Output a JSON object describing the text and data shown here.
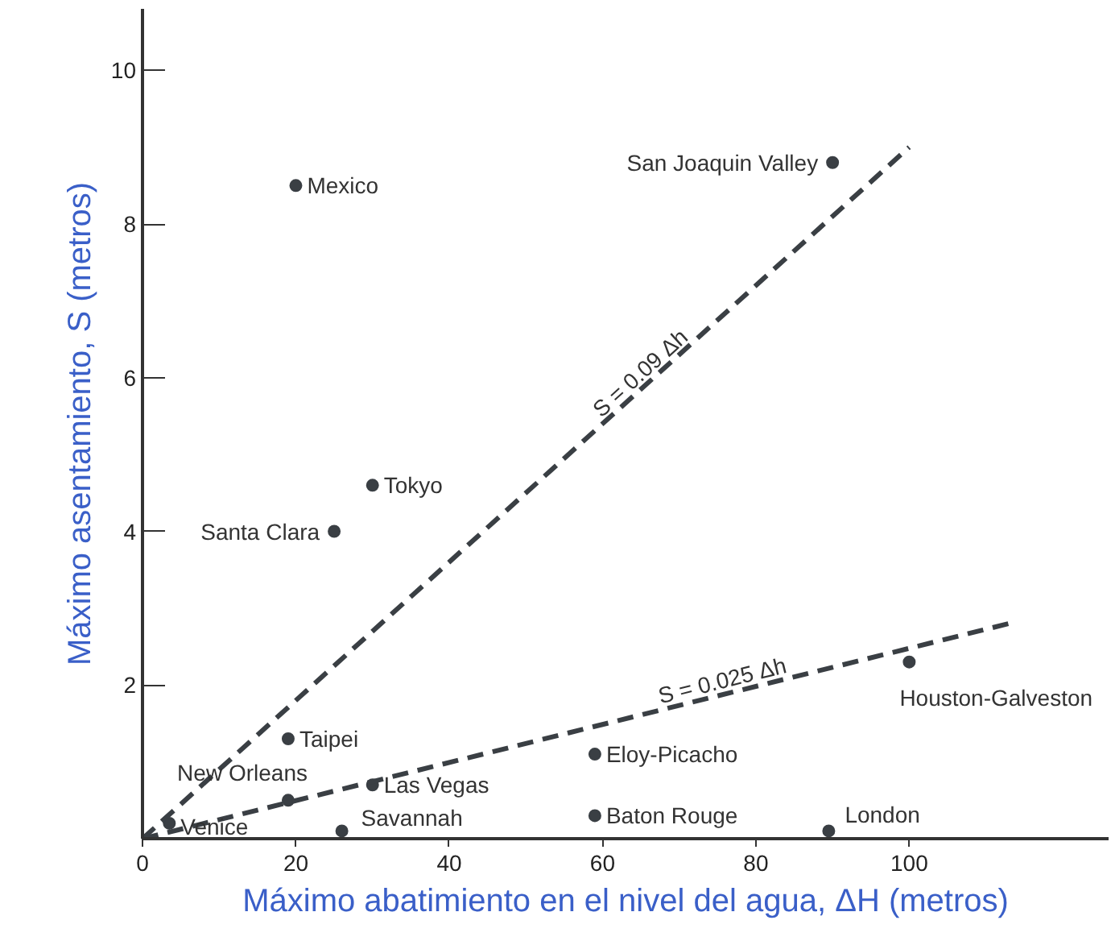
{
  "chart_data": {
    "type": "scatter",
    "xlabel": "Máximo abatimiento en el nivel del agua, ΔH (metros)",
    "ylabel": "Máximo asentamiento, S (metros)",
    "xlim": [
      0,
      126
    ],
    "ylim": [
      0,
      10.8
    ],
    "xticks": [
      0,
      20,
      40,
      60,
      80,
      100
    ],
    "yticks": [
      2,
      4,
      6,
      8,
      10
    ],
    "grid": false,
    "series": [
      {
        "marker": "circle",
        "color": "#3a3f44",
        "x": [
          20,
          90,
          30,
          25,
          19,
          100,
          59,
          30,
          19,
          3.5,
          26,
          59,
          89.5
        ],
        "values": [
          8.5,
          8.8,
          4.6,
          4.0,
          1.3,
          2.3,
          1.1,
          0.7,
          0.5,
          0.2,
          0.1,
          0.3,
          0.1
        ]
      },
      {
        "type": "line",
        "color": "#3a3f44",
        "line_style": "dashed",
        "marker": "none",
        "x": [
          0,
          100
        ],
        "values": [
          0,
          9
        ]
      },
      {
        "type": "line",
        "color": "#3a3f44",
        "line_style": "dashed",
        "marker": "none",
        "x": [
          0,
          113
        ],
        "values": [
          0,
          2.8
        ]
      }
    ],
    "annotations": [
      {
        "text": "Mexico",
        "x": 20,
        "y": 8.5
      },
      {
        "text": "San Joaquin Valley",
        "x": 90,
        "y": 8.8
      },
      {
        "text": "Tokyo",
        "x": 30,
        "y": 4.6
      },
      {
        "text": "Santa Clara",
        "x": 25,
        "y": 4.0
      },
      {
        "text": "Taipei",
        "x": 19,
        "y": 1.3
      },
      {
        "text": "Houston-Galveston",
        "x": 100,
        "y": 2.3
      },
      {
        "text": "Eloy-Picacho",
        "x": 59,
        "y": 1.1
      },
      {
        "text": "Las Vegas",
        "x": 30,
        "y": 0.7
      },
      {
        "text": "New Orleans",
        "x": 19,
        "y": 0.5
      },
      {
        "text": "Venice",
        "x": 3.5,
        "y": 0.2
      },
      {
        "text": "Savannah",
        "x": 26,
        "y": 0.1
      },
      {
        "text": "Baton Rouge",
        "x": 59,
        "y": 0.3
      },
      {
        "text": "London",
        "x": 89.5,
        "y": 0.1
      },
      {
        "text": "S = 0.09 Δh",
        "x": 66,
        "y": 5.94
      },
      {
        "text": "S = 0.025 Δh",
        "x": 76,
        "y": 1.9
      }
    ]
  }
}
